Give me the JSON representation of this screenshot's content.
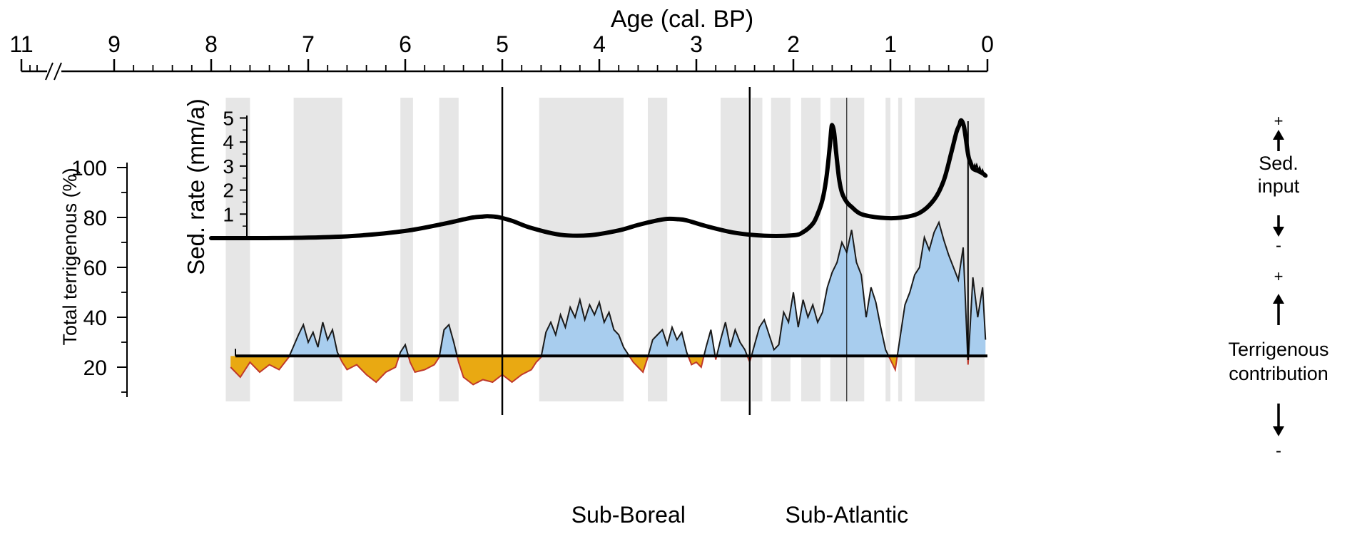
{
  "chart_data": {
    "type": "area",
    "top_axis": {
      "label": "Age (cal. BP)",
      "unit": "ka",
      "reversed": true,
      "range": [
        11,
        0
      ],
      "axis_break_between": [
        10.6,
        10.4
      ],
      "ticks": [
        {
          "value": 11,
          "label": "11"
        },
        {
          "value": 9,
          "label": "9"
        },
        {
          "value": 8,
          "label": "8"
        },
        {
          "value": 7,
          "label": "7"
        },
        {
          "value": 6,
          "label": "6"
        },
        {
          "value": 5,
          "label": "5"
        },
        {
          "value": 4,
          "label": "4"
        },
        {
          "value": 3,
          "label": "3"
        },
        {
          "value": 2,
          "label": "2"
        },
        {
          "value": 1,
          "label": "1"
        },
        {
          "value": 0,
          "label": "0"
        }
      ]
    },
    "sed_rate_axis": {
      "label": "Sed. rate (mm/a)",
      "range": [
        0,
        5
      ],
      "ticks": [
        "1",
        "2",
        "3",
        "4",
        "5"
      ]
    },
    "terrigenous_axis": {
      "label": "Total terrigenous (%)",
      "range": [
        10,
        105
      ],
      "ticks": [
        "20",
        "40",
        "60",
        "80",
        "100"
      ],
      "baseline": 24.5
    },
    "grey_bands": [
      [
        7.85,
        7.6
      ],
      [
        7.15,
        6.65
      ],
      [
        6.05,
        5.92
      ],
      [
        5.65,
        5.45
      ],
      [
        4.62,
        3.75
      ],
      [
        3.5,
        3.3
      ],
      [
        2.75,
        2.47
      ],
      [
        2.43,
        2.32
      ],
      [
        2.23,
        2.03
      ],
      [
        1.92,
        1.72
      ],
      [
        1.62,
        1.27
      ],
      [
        1.05,
        1.0
      ],
      [
        0.92,
        0.88
      ],
      [
        0.75,
        0.03
      ]
    ],
    "vertical_lines": [
      5.0,
      2.45
    ],
    "thin_vertical_line": 1.45,
    "sed_rate_series": {
      "x": [
        8.0,
        7.5,
        7.0,
        6.5,
        6.0,
        5.6,
        5.4,
        5.3,
        5.2,
        5.15,
        5.05,
        4.9,
        4.7,
        4.4,
        4.1,
        3.8,
        3.6,
        3.4,
        3.3,
        3.2,
        3.1,
        2.9,
        2.6,
        2.3,
        2.0,
        1.9,
        1.8,
        1.75,
        1.7,
        1.66,
        1.63,
        1.61,
        1.6,
        1.58,
        1.56,
        1.53,
        1.5,
        1.45,
        1.4,
        1.3,
        1.1,
        0.9,
        0.7,
        0.55,
        0.45,
        0.37,
        0.32,
        0.29,
        0.27,
        0.24,
        0.2,
        0.18,
        0.15,
        0.1,
        0.05,
        0.02
      ],
      "y": [
        0.0,
        0.0,
        0.02,
        0.1,
        0.3,
        0.6,
        0.78,
        0.86,
        0.9,
        0.91,
        0.88,
        0.72,
        0.42,
        0.14,
        0.12,
        0.32,
        0.55,
        0.74,
        0.8,
        0.79,
        0.74,
        0.5,
        0.22,
        0.1,
        0.12,
        0.25,
        0.6,
        1.0,
        1.6,
        2.5,
        3.6,
        4.5,
        4.7,
        4.4,
        3.6,
        2.5,
        1.9,
        1.5,
        1.3,
        1.0,
        0.85,
        0.85,
        1.05,
        1.6,
        2.4,
        3.6,
        4.4,
        4.7,
        4.9,
        4.6,
        3.5,
        3.2,
        2.9,
        2.8,
        2.7,
        2.6
      ]
    },
    "terrigenous_series": {
      "x": [
        7.8,
        7.7,
        7.6,
        7.5,
        7.4,
        7.3,
        7.2,
        7.1,
        7.05,
        7.0,
        6.95,
        6.9,
        6.85,
        6.8,
        6.75,
        6.7,
        6.65,
        6.6,
        6.5,
        6.4,
        6.3,
        6.2,
        6.1,
        6.05,
        6.0,
        5.95,
        5.9,
        5.8,
        5.7,
        5.65,
        5.6,
        5.55,
        5.5,
        5.45,
        5.4,
        5.3,
        5.2,
        5.1,
        5.0,
        4.9,
        4.8,
        4.7,
        4.65,
        4.6,
        4.55,
        4.5,
        4.45,
        4.4,
        4.35,
        4.3,
        4.25,
        4.2,
        4.15,
        4.1,
        4.05,
        4.0,
        3.95,
        3.9,
        3.85,
        3.8,
        3.75,
        3.7,
        3.65,
        3.6,
        3.55,
        3.5,
        3.45,
        3.4,
        3.35,
        3.3,
        3.25,
        3.2,
        3.15,
        3.1,
        3.05,
        3.0,
        2.95,
        2.9,
        2.85,
        2.8,
        2.75,
        2.7,
        2.65,
        2.6,
        2.55,
        2.5,
        2.45,
        2.4,
        2.35,
        2.3,
        2.25,
        2.2,
        2.15,
        2.1,
        2.05,
        2.0,
        1.95,
        1.9,
        1.85,
        1.8,
        1.75,
        1.7,
        1.65,
        1.6,
        1.55,
        1.5,
        1.45,
        1.4,
        1.35,
        1.3,
        1.25,
        1.2,
        1.15,
        1.1,
        1.05,
        1.0,
        0.95,
        0.9,
        0.85,
        0.8,
        0.75,
        0.7,
        0.65,
        0.6,
        0.55,
        0.5,
        0.45,
        0.4,
        0.35,
        0.3,
        0.25,
        0.2,
        0.15,
        0.1,
        0.05,
        0.02
      ],
      "y": [
        20,
        16,
        22,
        18,
        21,
        19,
        24,
        33,
        37,
        30,
        34,
        28,
        38,
        31,
        35,
        26,
        22,
        19,
        21,
        17,
        14,
        18,
        20,
        26,
        29,
        22,
        18,
        19,
        21,
        24,
        35,
        37,
        30,
        22,
        16,
        13,
        15,
        14,
        17,
        14,
        17,
        19,
        22,
        24,
        34,
        38,
        33,
        41,
        36,
        44,
        40,
        47,
        39,
        45,
        41,
        46,
        38,
        42,
        35,
        33,
        28,
        25,
        22,
        20,
        18,
        24,
        31,
        33,
        35,
        29,
        36,
        31,
        34,
        26,
        21,
        22,
        20,
        28,
        35,
        23,
        31,
        38,
        28,
        35,
        30,
        27,
        22,
        29,
        36,
        39,
        33,
        27,
        29,
        42,
        38,
        50,
        36,
        47,
        40,
        45,
        38,
        42,
        52,
        58,
        62,
        70,
        66,
        75,
        62,
        57,
        40,
        52,
        46,
        36,
        27,
        23,
        19,
        32,
        45,
        50,
        57,
        60,
        72,
        67,
        74,
        78,
        71,
        65,
        60,
        55,
        68,
        21,
        56,
        40,
        52,
        31
      ],
      "above_baseline_color": "#a8cdee",
      "below_baseline_color": "#e9a912",
      "line_color": "#1a1a1a",
      "below_edge_color": "#c0392b"
    },
    "right_annotations": {
      "sed_input": {
        "plus": "+",
        "label_line1": "Sed.",
        "label_line2": "input",
        "minus": "-"
      },
      "terrigenous": {
        "plus": "+",
        "label_line1": "Terrigenous",
        "label_line2": "contribution",
        "minus": "-"
      }
    },
    "period_labels": [
      {
        "text": "Sub-Boreal",
        "at": 3.7
      },
      {
        "text": "Sub-Atlantic",
        "at": 1.45
      }
    ],
    "colors": {
      "grey_band": "#e6e6e6",
      "axis": "#000000",
      "sed_rate_line": "#000000"
    }
  }
}
